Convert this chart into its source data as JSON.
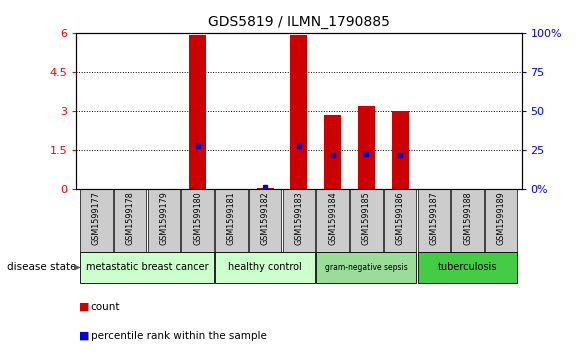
{
  "title": "GDS5819 / ILMN_1790885",
  "samples": [
    "GSM1599177",
    "GSM1599178",
    "GSM1599179",
    "GSM1599180",
    "GSM1599181",
    "GSM1599182",
    "GSM1599183",
    "GSM1599184",
    "GSM1599185",
    "GSM1599186",
    "GSM1599187",
    "GSM1599188",
    "GSM1599189"
  ],
  "counts": [
    0,
    0,
    0,
    5.9,
    0,
    0.05,
    5.9,
    2.85,
    3.2,
    3.0,
    0,
    0,
    0
  ],
  "percentile_ranks": [
    null,
    null,
    null,
    1.65,
    null,
    0.1,
    1.65,
    1.3,
    1.35,
    1.3,
    null,
    null,
    null
  ],
  "ylim_left": [
    0,
    6
  ],
  "ylim_right": [
    0,
    100
  ],
  "yticks_left": [
    0,
    1.5,
    3,
    4.5,
    6
  ],
  "ytick_labels_left": [
    "0",
    "1.5",
    "3",
    "4.5",
    "6"
  ],
  "yticks_right": [
    0,
    25,
    50,
    75,
    100
  ],
  "ytick_labels_right": [
    "0%",
    "25",
    "50",
    "75",
    "100%"
  ],
  "disease_groups": [
    {
      "label": "metastatic breast cancer",
      "indices": [
        0,
        1,
        2,
        3
      ],
      "color": "#ccffcc"
    },
    {
      "label": "healthy control",
      "indices": [
        4,
        5,
        6
      ],
      "color": "#ccffcc"
    },
    {
      "label": "gram-negative sepsis",
      "indices": [
        7,
        8,
        9
      ],
      "color": "#99dd99"
    },
    {
      "label": "tuberculosis",
      "indices": [
        10,
        11,
        12
      ],
      "color": "#44cc44"
    }
  ],
  "disease_state_label": "disease state",
  "bar_color": "#cc0000",
  "dot_color": "#0000cc",
  "bar_width": 0.5,
  "bg_color": "#ffffff",
  "sample_box_color": "#cccccc",
  "legend_count_label": "count",
  "legend_percentile_label": "percentile rank within the sample"
}
